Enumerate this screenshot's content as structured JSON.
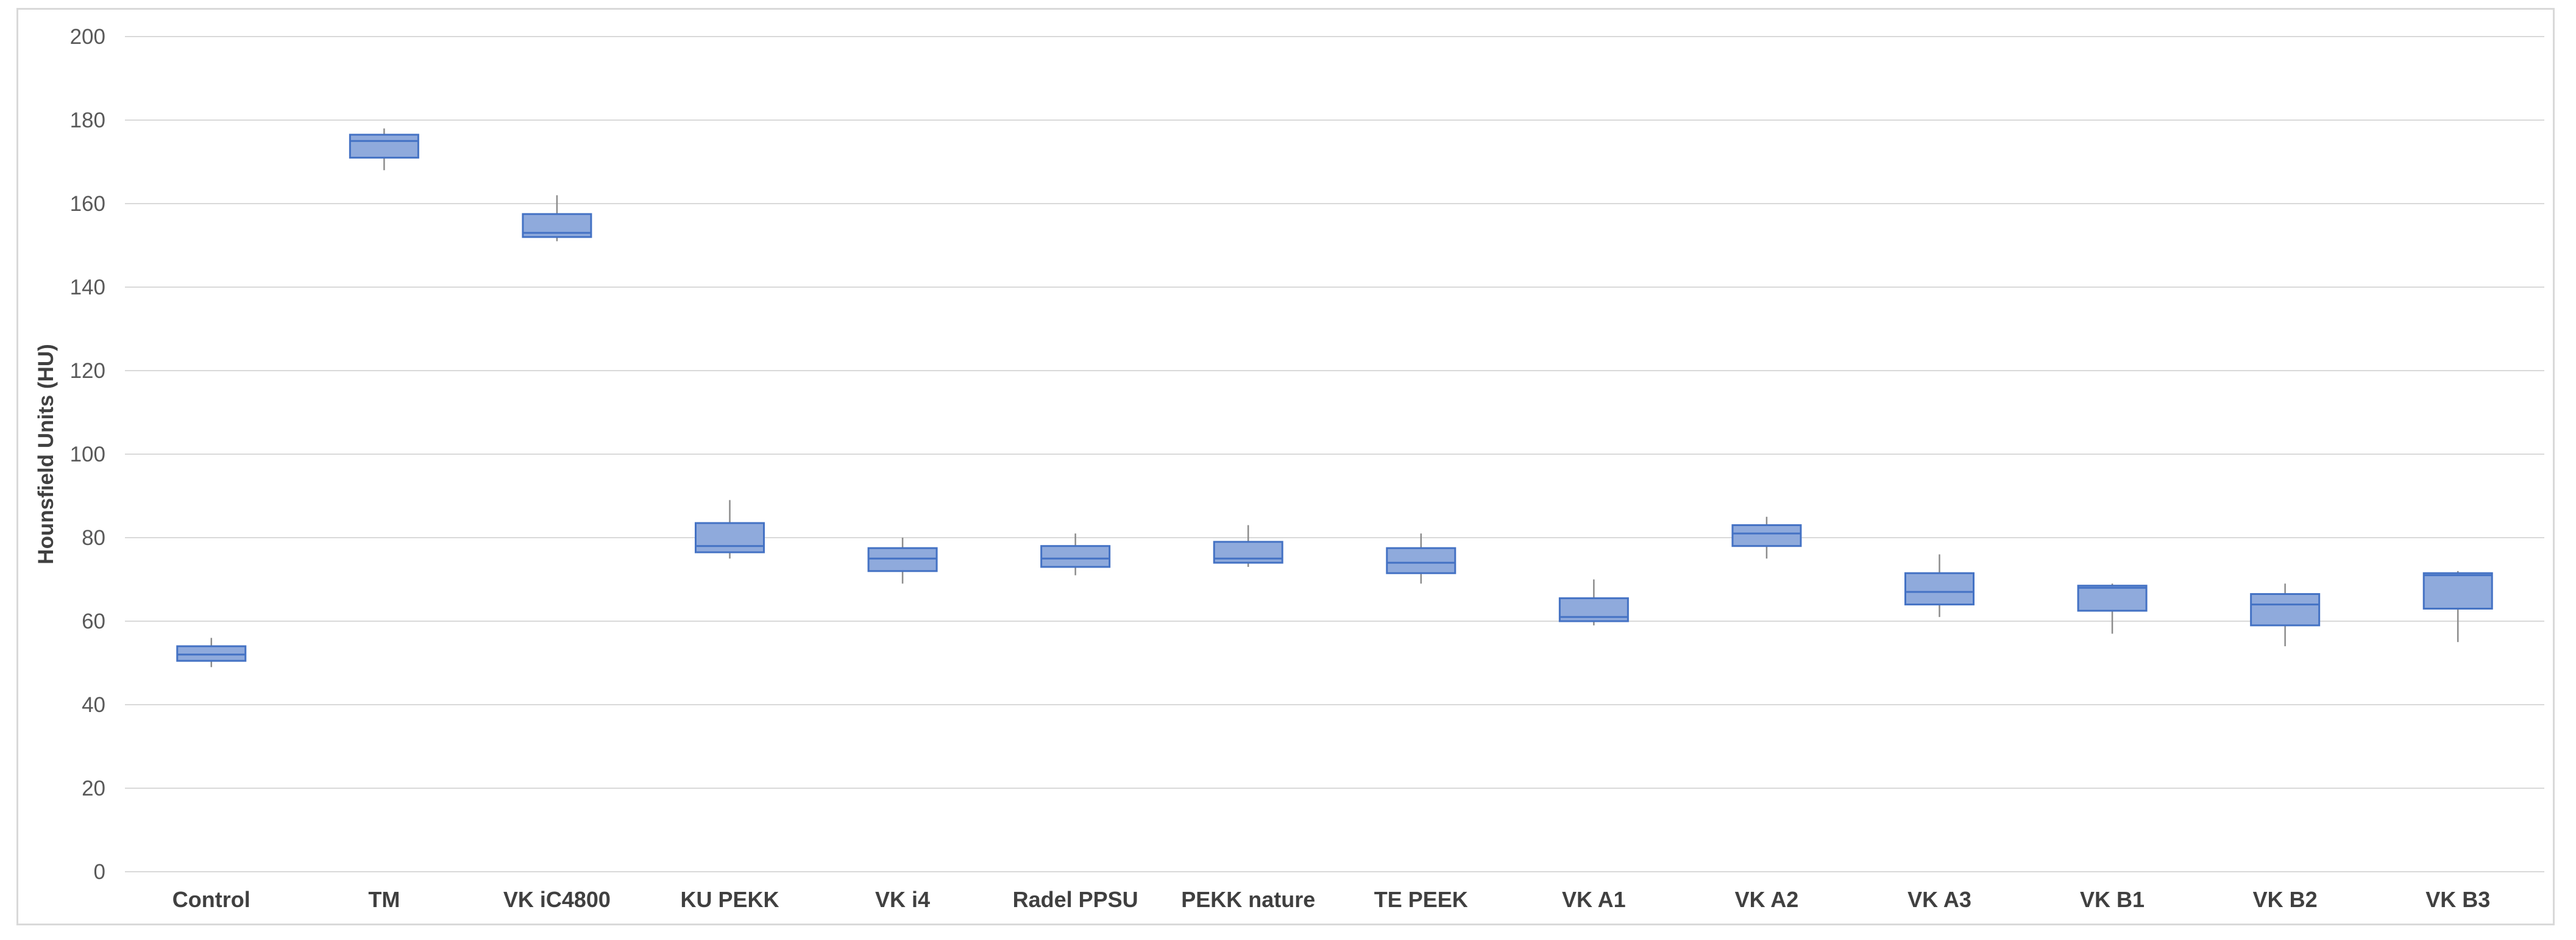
{
  "chart_data": {
    "type": "box",
    "title": "",
    "xlabel": "",
    "ylabel": "Hounsfield Units (HU)",
    "ylim": [
      0,
      200
    ],
    "yticks": [
      0,
      20,
      40,
      60,
      80,
      100,
      120,
      140,
      160,
      180,
      200
    ],
    "grid": true,
    "legend": "none",
    "colors": {
      "box_fill": "#8faadc",
      "box_stroke": "#4472c4",
      "whisker": "#8c8c8c",
      "grid": "#d9d9d9",
      "frame": "#d9d9d9"
    },
    "categories": [
      "Control",
      "TM",
      "VK iC4800",
      "KU PEKK",
      "VK i4",
      "Radel PPSU",
      "PEKK nature",
      "TE PEEK",
      "VK A1",
      "VK A2",
      "VK A3",
      "VK B1",
      "VK B2",
      "VK B3"
    ],
    "boxes": [
      {
        "min": 49,
        "q1": 50.5,
        "median": 52,
        "q3": 54,
        "max": 56
      },
      {
        "min": 168,
        "q1": 171,
        "median": 175,
        "q3": 176.5,
        "max": 178
      },
      {
        "min": 151,
        "q1": 152,
        "median": 153,
        "q3": 157.5,
        "max": 162
      },
      {
        "min": 75,
        "q1": 76.5,
        "median": 78,
        "q3": 83.5,
        "max": 89
      },
      {
        "min": 69,
        "q1": 72,
        "median": 75,
        "q3": 77.5,
        "max": 80
      },
      {
        "min": 71,
        "q1": 73,
        "median": 75,
        "q3": 78,
        "max": 81
      },
      {
        "min": 73,
        "q1": 74,
        "median": 75,
        "q3": 79,
        "max": 83
      },
      {
        "min": 69,
        "q1": 71.5,
        "median": 74,
        "q3": 77.5,
        "max": 81
      },
      {
        "min": 59,
        "q1": 60,
        "median": 61,
        "q3": 65.5,
        "max": 70
      },
      {
        "min": 75,
        "q1": 78,
        "median": 81,
        "q3": 83,
        "max": 85
      },
      {
        "min": 61,
        "q1": 64,
        "median": 67,
        "q3": 71.5,
        "max": 76
      },
      {
        "min": 57,
        "q1": 62.5,
        "median": 68,
        "q3": 68.5,
        "max": 69
      },
      {
        "min": 54,
        "q1": 59,
        "median": 64,
        "q3": 66.5,
        "max": 69
      },
      {
        "min": 55,
        "q1": 63,
        "median": 71,
        "q3": 71.5,
        "max": 72
      }
    ]
  }
}
